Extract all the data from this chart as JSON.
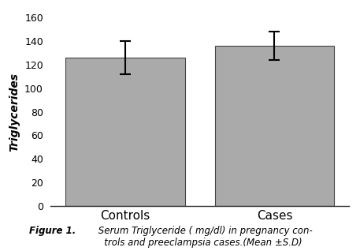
{
  "categories": [
    "Controls",
    "Cases"
  ],
  "values": [
    126.0,
    136.0
  ],
  "errors": [
    14.0,
    12.0
  ],
  "bar_color": "#aaaaaa",
  "bar_edgecolor": "#444444",
  "bar_width": 0.4,
  "ylabel": "Triglycerides",
  "ylim": [
    0,
    160
  ],
  "yticks": [
    0,
    20,
    40,
    60,
    80,
    100,
    120,
    140,
    160
  ],
  "background_color": "#ffffff",
  "caption_fontsize": 8.5,
  "ylabel_fontsize": 10,
  "tick_fontsize": 9,
  "xtick_fontsize": 11,
  "bar_positions": [
    0.25,
    0.75
  ]
}
